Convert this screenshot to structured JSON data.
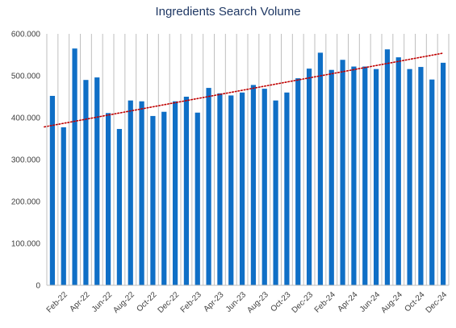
{
  "chart_data": {
    "type": "bar",
    "title": "Ingredients Search Volume",
    "xlabel": "",
    "ylabel": "",
    "ylim": [
      0,
      600000
    ],
    "yticks": [
      0,
      100000,
      200000,
      300000,
      400000,
      500000,
      600000
    ],
    "ytick_labels": [
      "0",
      "100.000",
      "200.000",
      "300.000",
      "400.000",
      "500.000",
      "600.000"
    ],
    "categories": [
      "Jan-22",
      "Feb-22",
      "Mar-22",
      "Apr-22",
      "May-22",
      "Jun-22",
      "Jul-22",
      "Aug-22",
      "Sep-22",
      "Oct-22",
      "Nov-22",
      "Dec-22",
      "Jan-23",
      "Feb-23",
      "Mar-23",
      "Apr-23",
      "May-23",
      "Jun-23",
      "Jul-23",
      "Aug-23",
      "Sep-23",
      "Oct-23",
      "Nov-23",
      "Dec-23",
      "Jan-24",
      "Feb-24",
      "Mar-24",
      "Apr-24",
      "May-24",
      "Jun-24",
      "Jul-24",
      "Aug-24",
      "Sep-24",
      "Oct-24",
      "Nov-24",
      "Dec-24"
    ],
    "xtick_labels": [
      "Feb-22",
      "Apr-22",
      "Jun-22",
      "Aug-22",
      "Oct-22",
      "Dec-22",
      "Feb-23",
      "Apr-23",
      "Jun-23",
      "Aug-23",
      "Oct-23",
      "Dec-23",
      "Feb-24",
      "Apr-24",
      "Jun-24",
      "Aug-24",
      "Oct-24",
      "Dec-24"
    ],
    "values": [
      452000,
      377000,
      565000,
      490000,
      496000,
      411000,
      373000,
      441000,
      439000,
      404000,
      414000,
      439000,
      450000,
      412000,
      471000,
      458000,
      453000,
      460000,
      478000,
      469000,
      441000,
      460000,
      494000,
      517000,
      555000,
      514000,
      538000,
      522000,
      522000,
      516000,
      563000,
      544000,
      516000,
      521000,
      491000,
      531000
    ],
    "trendline": {
      "type": "linear",
      "style": "dotted",
      "start": 378000,
      "end": 554000
    },
    "grid": "vertical",
    "colors": {
      "bar": "#0f6fc6",
      "trend": "#c00000",
      "grid": "#bfbfbf",
      "axis": "#bfbfbf",
      "title": "#1f3864",
      "text": "#404040"
    }
  }
}
